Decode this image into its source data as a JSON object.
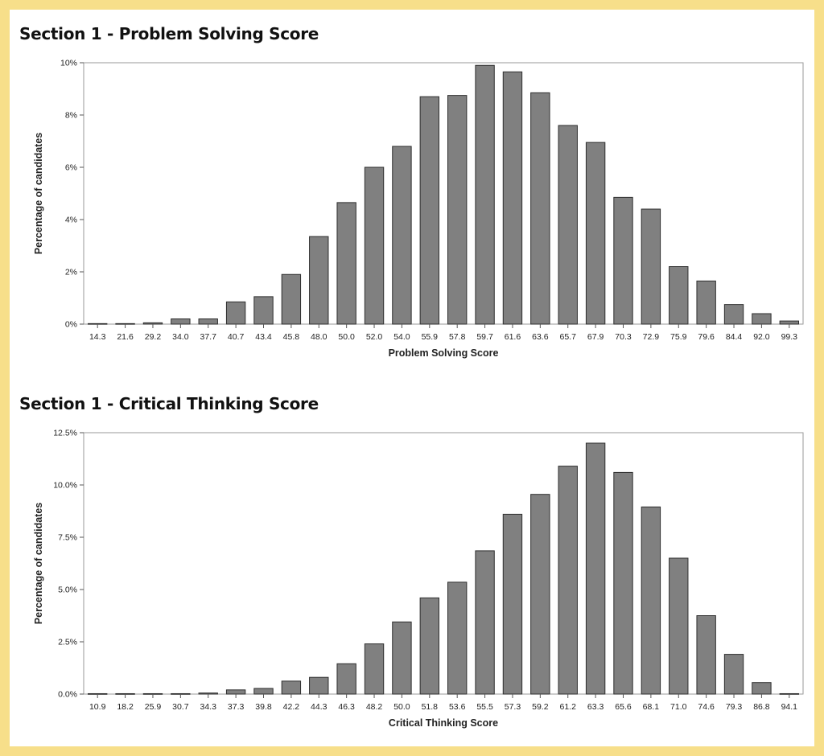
{
  "page": {
    "border_color": "#f7df8a",
    "card_color": "#ffffff"
  },
  "chart_data": [
    {
      "type": "bar",
      "title": "Section 1 - Problem Solving Score",
      "xlabel": "Problem Solving Score",
      "ylabel": "Percentage of candidates",
      "categories": [
        "14.3",
        "21.6",
        "29.2",
        "34.0",
        "37.7",
        "40.7",
        "43.4",
        "45.8",
        "48.0",
        "50.0",
        "52.0",
        "54.0",
        "55.9",
        "57.8",
        "59.7",
        "61.6",
        "63.6",
        "65.7",
        "67.9",
        "70.3",
        "72.9",
        "75.9",
        "79.6",
        "84.4",
        "92.0",
        "99.3"
      ],
      "values": [
        0.02,
        0.02,
        0.05,
        0.2,
        0.2,
        0.85,
        1.05,
        1.9,
        3.35,
        4.65,
        6.0,
        6.8,
        8.7,
        8.75,
        9.9,
        9.65,
        8.85,
        7.6,
        6.95,
        4.85,
        4.4,
        2.2,
        1.65,
        0.75,
        0.4,
        0.12
      ],
      "ylim": [
        0,
        10
      ],
      "yticks": [
        "0%",
        "2%",
        "4%",
        "6%",
        "8%",
        "10%"
      ],
      "bar_color": "#808080",
      "grid": false
    },
    {
      "type": "bar",
      "title": "Section 1 - Critical Thinking Score",
      "xlabel": "Critical Thinking Score",
      "ylabel": "Percentage of candidates",
      "categories": [
        "10.9",
        "18.2",
        "25.9",
        "30.7",
        "34.3",
        "37.3",
        "39.8",
        "42.2",
        "44.3",
        "46.3",
        "48.2",
        "50.0",
        "51.8",
        "53.6",
        "55.5",
        "57.3",
        "59.2",
        "61.2",
        "63.3",
        "65.6",
        "68.1",
        "71.0",
        "74.6",
        "79.3",
        "86.8",
        "94.1"
      ],
      "values": [
        0.02,
        0.02,
        0.02,
        0.02,
        0.05,
        0.2,
        0.27,
        0.62,
        0.8,
        1.45,
        2.4,
        3.45,
        4.6,
        5.35,
        6.85,
        8.6,
        9.55,
        10.9,
        12.0,
        10.6,
        8.95,
        6.5,
        3.75,
        1.9,
        0.55,
        0.02
      ],
      "ylim": [
        0,
        12.5
      ],
      "yticks": [
        "0.0%",
        "2.5%",
        "5.0%",
        "7.5%",
        "10.0%",
        "12.5%"
      ],
      "bar_color": "#808080",
      "grid": false
    }
  ]
}
